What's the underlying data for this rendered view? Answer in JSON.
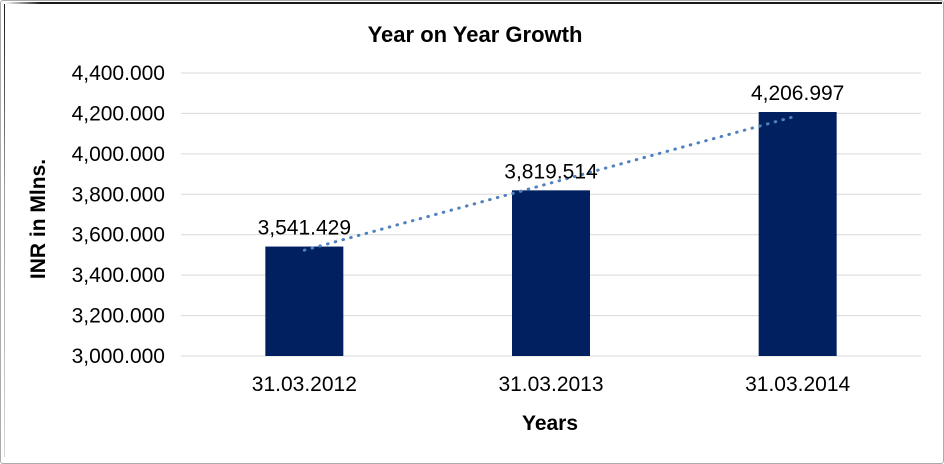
{
  "chart_data": {
    "type": "bar",
    "title": "Year on Year Growth",
    "xlabel": "Years",
    "ylabel": "INR in Mlns.",
    "categories": [
      "31.03.2012",
      "31.03.2013",
      "31.03.2014"
    ],
    "values": [
      3541.429,
      3819.514,
      4206.997
    ],
    "data_labels": [
      "3,541.429",
      "3,819.514",
      "4,206.997"
    ],
    "ylim": [
      3000,
      4400
    ],
    "y_tick_step": 200,
    "y_tick_labels": [
      "3,000.000",
      "3,200.000",
      "3,400.000",
      "3,600.000",
      "3,800.000",
      "4,000.000",
      "4,200.000",
      "4,400.000"
    ],
    "grid": true,
    "legend": "none",
    "trendline": {
      "type": "linear",
      "style": "dotted"
    },
    "colors": {
      "bar": "#002060",
      "trendline": "#4e81bd",
      "gridline": "#d9d9d9",
      "text": "#000000",
      "background": "#ffffff"
    }
  }
}
